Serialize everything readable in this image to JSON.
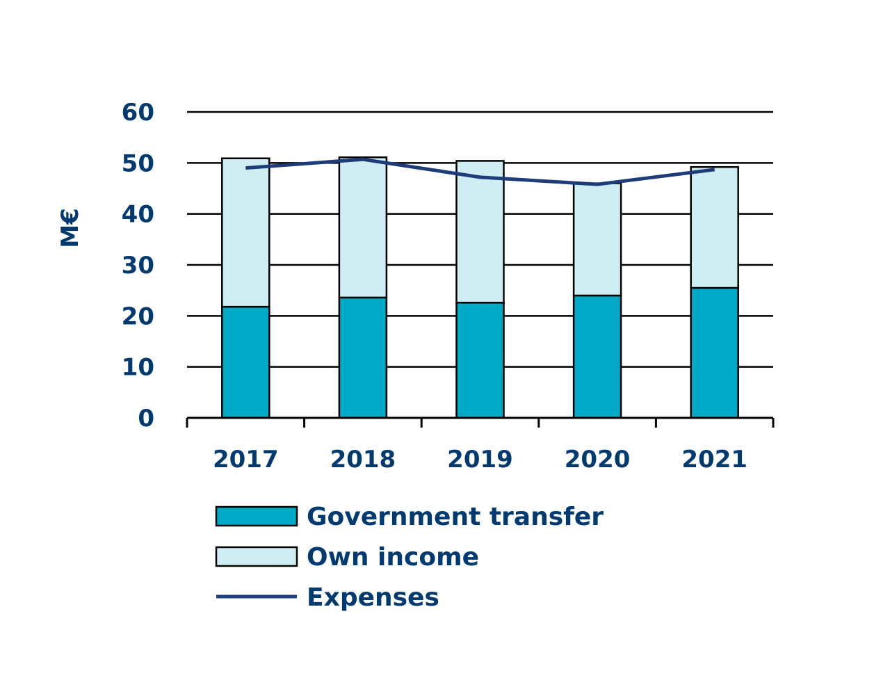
{
  "chart_data": {
    "type": "bar",
    "stacked": true,
    "categories": [
      "2017",
      "2018",
      "2019",
      "2020",
      "2021"
    ],
    "series": [
      {
        "name": "Government transfer",
        "kind": "bar",
        "values": [
          21.8,
          23.6,
          22.6,
          24.0,
          25.5
        ],
        "color": "#00a9c6"
      },
      {
        "name": "Own income",
        "kind": "bar",
        "values": [
          29.1,
          27.5,
          27.8,
          22.0,
          23.7
        ],
        "color": "#cfeef3"
      },
      {
        "name": "Expenses",
        "kind": "line",
        "values": [
          49.0,
          50.7,
          47.2,
          45.8,
          48.7
        ],
        "color": "#1f3c7a"
      }
    ],
    "ylabel": "M€",
    "xlabel": "",
    "ylim": [
      0,
      60
    ],
    "yticks": [
      "0",
      "10",
      "20",
      "30",
      "40",
      "50",
      "60"
    ],
    "grid": true,
    "legend_position": "bottom",
    "colors": {
      "text": "#003a70",
      "grid": "#000000",
      "bar_outline": "#000000"
    }
  }
}
